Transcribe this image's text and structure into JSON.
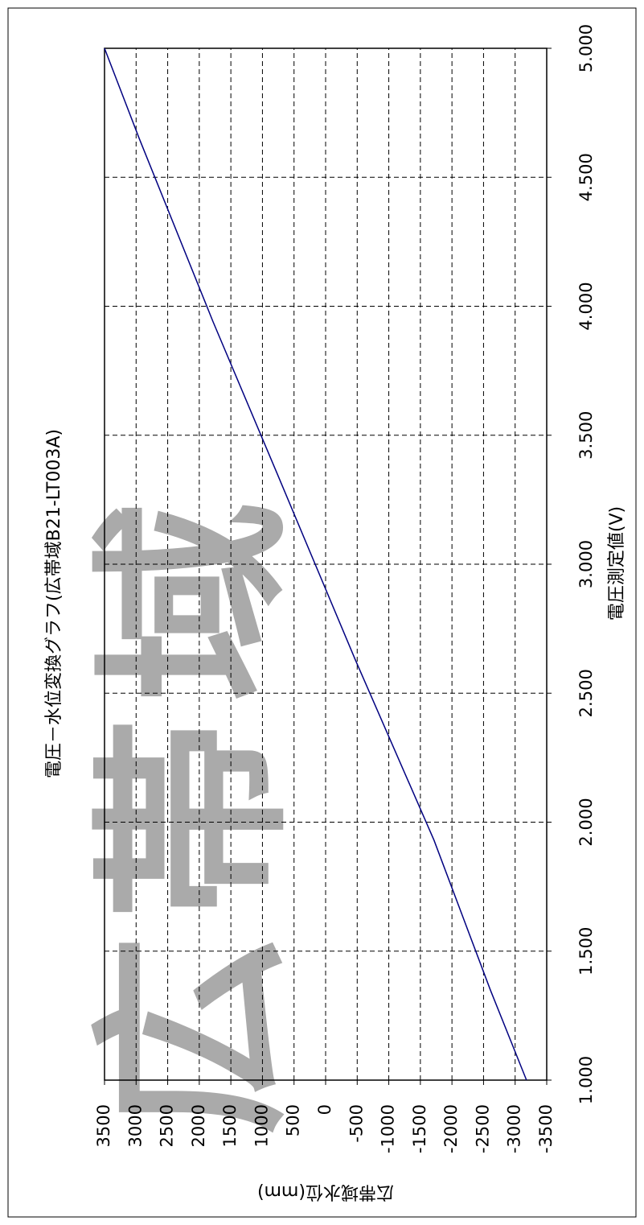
{
  "chart_data": {
    "type": "line",
    "title": "電圧－水位変換グラフ(広帯域B21-LT003A)",
    "x_label": "電圧測定値(V)",
    "y_label": "広帯域水位(mm)",
    "watermark": "広帯域",
    "x": [
      1.0,
      1.35,
      1.93,
      2.63,
      3.35,
      3.94,
      4.65,
      5.0
    ],
    "series": [
      {
        "name": "広帯域水位",
        "color": "#000080",
        "values": [
          -3180,
          -2607,
          -1716,
          -469,
          765,
          1782,
          2950,
          3500
        ]
      }
    ],
    "xlim": [
      1.0,
      5.0
    ],
    "xticks": [
      {
        "value": 1.0,
        "label": "1.000"
      },
      {
        "value": 1.5,
        "label": "1.500"
      },
      {
        "value": 2.0,
        "label": "2.000"
      },
      {
        "value": 2.5,
        "label": "2.500"
      },
      {
        "value": 3.0,
        "label": "3.000"
      },
      {
        "value": 3.5,
        "label": "3.500"
      },
      {
        "value": 4.0,
        "label": "4.000"
      },
      {
        "value": 4.5,
        "label": "4.500"
      },
      {
        "value": 5.0,
        "label": "5.000"
      }
    ],
    "ylim": [
      -3500,
      3500
    ],
    "yticks": [
      -3500,
      -3000,
      -2500,
      -2000,
      -1500,
      -1000,
      -500,
      0,
      500,
      1000,
      1500,
      2000,
      2500,
      3000,
      3500
    ],
    "grid": true
  }
}
